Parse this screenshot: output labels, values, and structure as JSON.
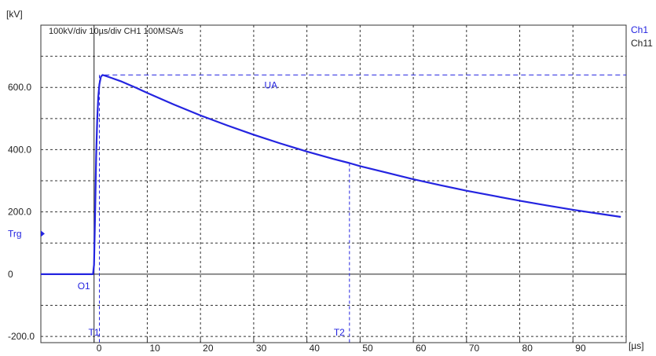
{
  "chart_data": {
    "type": "line",
    "y_unit": "[kV]",
    "x_unit": "[µs]",
    "header": "100kV/div  10µs/div  CH1 100MSA/s",
    "xlim": [
      -10,
      100
    ],
    "ylim": [
      -220,
      800
    ],
    "x_ticks": [
      {
        "v": 0,
        "t": "0"
      },
      {
        "v": 10,
        "t": "10"
      },
      {
        "v": 20,
        "t": "20"
      },
      {
        "v": 30,
        "t": "30"
      },
      {
        "v": 40,
        "t": "40"
      },
      {
        "v": 50,
        "t": "50"
      },
      {
        "v": 60,
        "t": "60"
      },
      {
        "v": 70,
        "t": "70"
      },
      {
        "v": 80,
        "t": "80"
      },
      {
        "v": 90,
        "t": "90"
      }
    ],
    "y_ticks": [
      {
        "v": -200,
        "t": "-200.0"
      },
      {
        "v": 0,
        "t": "0"
      },
      {
        "v": 200,
        "t": "200.0"
      },
      {
        "v": 400,
        "t": "400.0"
      },
      {
        "v": 600,
        "t": "600.0"
      }
    ],
    "grid": true,
    "legend": [
      "Ch1",
      "Ch11"
    ],
    "series": [
      {
        "name": "Ch1",
        "color": "#2424e0",
        "x": [
          -10,
          -1,
          -0.2,
          0,
          0.2,
          0.4,
          0.6,
          0.8,
          1,
          1.3,
          1.6,
          2,
          3,
          5,
          8,
          10,
          15,
          20,
          25,
          30,
          35,
          40,
          45,
          48,
          50,
          55,
          60,
          65,
          70,
          75,
          80,
          85,
          90,
          95,
          99
        ],
        "y": [
          0,
          0,
          0,
          30,
          200,
          380,
          500,
          570,
          610,
          635,
          640,
          638,
          632,
          620,
          598,
          582,
          545,
          510,
          478,
          448,
          420,
          394,
          370,
          357,
          347,
          326,
          305,
          286,
          268,
          252,
          236,
          221,
          207,
          194,
          184
        ]
      }
    ],
    "annotations": {
      "peak_label": "UA",
      "peak_value": 640,
      "trg_label": "Trg",
      "trg_value": 130,
      "o1_label": "O1",
      "t1_label": "T1",
      "t1_x": 1,
      "t2_label": "T2",
      "t2_x": 48
    }
  }
}
